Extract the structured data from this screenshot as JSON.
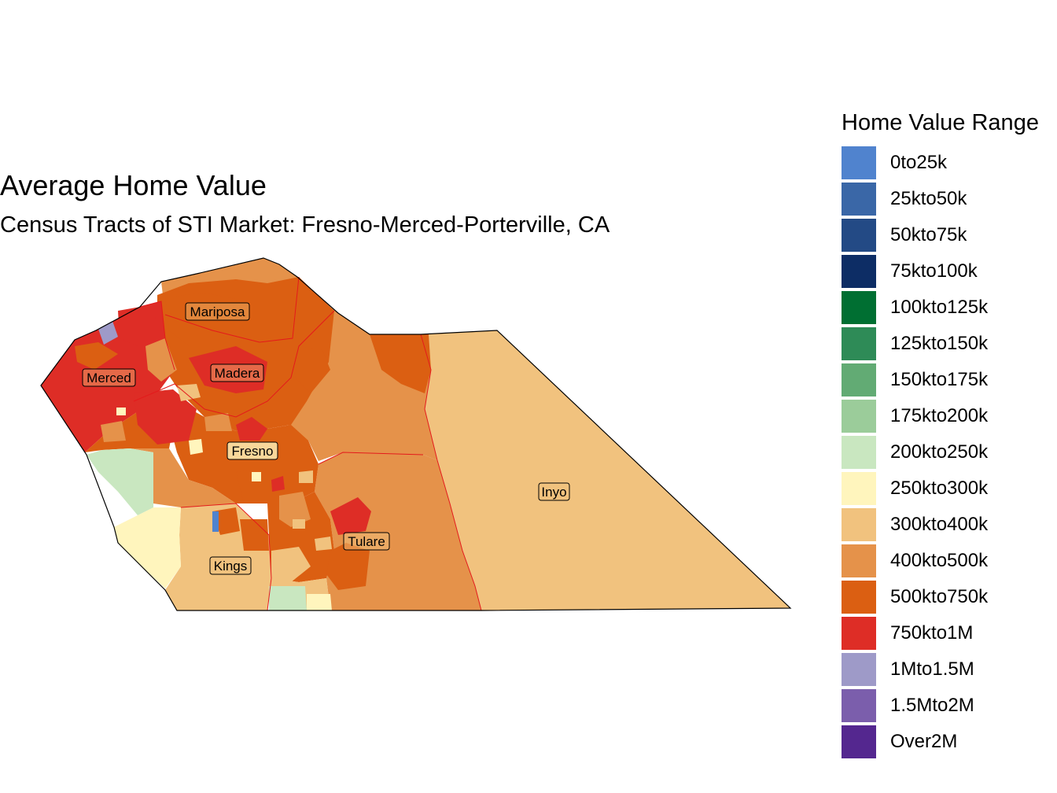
{
  "title": "Average Home Value",
  "subtitle": "Census Tracts of STI Market: Fresno-Merced-Porterville, CA",
  "legend": {
    "title": "Home Value Range",
    "items": [
      {
        "label": "0to25k",
        "color": "#5083CE"
      },
      {
        "label": "25kto50k",
        "color": "#3A67A7"
      },
      {
        "label": "50kto75k",
        "color": "#234A85"
      },
      {
        "label": "75kto100k",
        "color": "#0D2D65"
      },
      {
        "label": "100kto125k",
        "color": "#006F32"
      },
      {
        "label": "125kto150k",
        "color": "#2E8B57"
      },
      {
        "label": "150kto175k",
        "color": "#62AB74"
      },
      {
        "label": "175kto200k",
        "color": "#9BCC9A"
      },
      {
        "label": "200kto250k",
        "color": "#C9E7C0"
      },
      {
        "label": "250kto300k",
        "color": "#FFF5BD"
      },
      {
        "label": "300kto400k",
        "color": "#F1C27E"
      },
      {
        "label": "400kto500k",
        "color": "#E5924A"
      },
      {
        "label": "500kto750k",
        "color": "#DB5F12"
      },
      {
        "label": "750kto1M",
        "color": "#DE2D26"
      },
      {
        "label": "1Mto1.5M",
        "color": "#9E9AC8"
      },
      {
        "label": "1.5Mto2M",
        "color": "#7B5EAC"
      },
      {
        "label": "Over2M",
        "color": "#54278F"
      }
    ]
  },
  "counties": {
    "mariposa": "Mariposa",
    "merced": "Merced",
    "madera": "Madera",
    "fresno": "Fresno",
    "inyo": "Inyo",
    "tulare": "Tulare",
    "kings": "Kings"
  }
}
